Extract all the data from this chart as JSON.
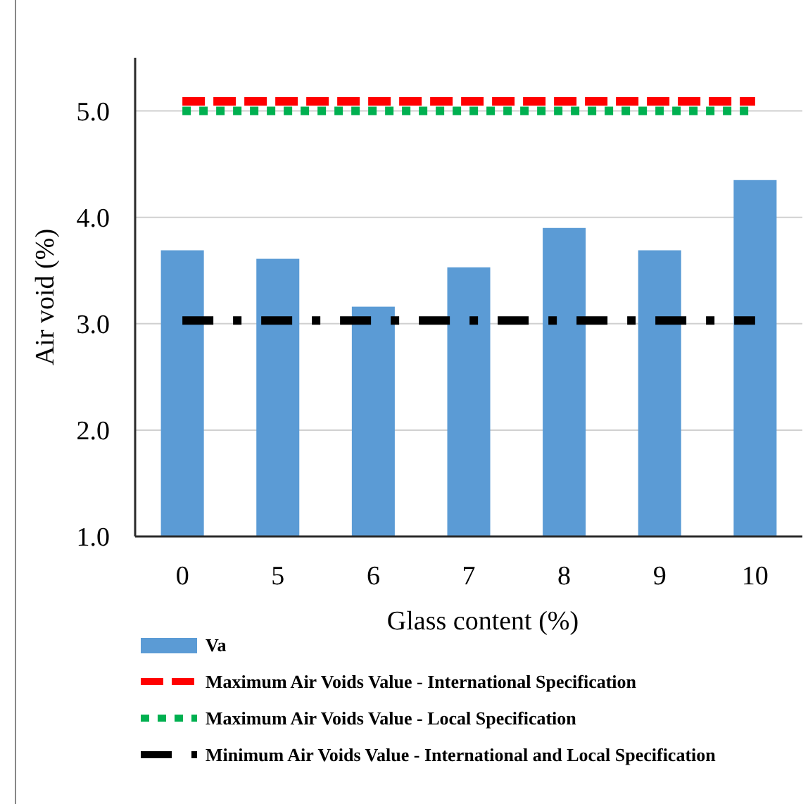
{
  "chart_data": {
    "type": "bar",
    "xlabel": "Glass content (%)",
    "ylabel": "Air void (%)",
    "categories": [
      "0",
      "5",
      "6",
      "7",
      "8",
      "9",
      "10"
    ],
    "series": [
      {
        "name": "Va",
        "color": "#5b9bd5",
        "values": [
          3.69,
          3.61,
          3.16,
          3.53,
          3.9,
          3.69,
          4.35
        ]
      },
      {
        "name": "Maximum Air Voids Value - International Specification",
        "type": "line",
        "line_style": "dashed",
        "color": "#ff0000",
        "values": [
          5.09,
          5.09,
          5.09,
          5.09,
          5.09,
          5.09,
          5.09
        ]
      },
      {
        "name": "Maximum Air Voids Value - Local Specification",
        "type": "line",
        "line_style": "dotted",
        "color": "#00b050",
        "values": [
          5.0,
          5.0,
          5.0,
          5.0,
          5.0,
          5.0,
          5.0
        ]
      },
      {
        "name": "Minimum Air Voids Value -  International and Local Specification",
        "type": "line",
        "line_style": "dashdot",
        "color": "#000000",
        "values": [
          3.03,
          3.03,
          3.03,
          3.03,
          3.03,
          3.03,
          3.03
        ]
      }
    ],
    "ylim": [
      1,
      5.5
    ],
    "yticks": [
      {
        "value": 1,
        "label": "1.0"
      },
      {
        "value": 2,
        "label": "2.0"
      },
      {
        "value": 3,
        "label": "3.0"
      },
      {
        "value": 4,
        "label": "4.0"
      },
      {
        "value": 5,
        "label": "5.0"
      }
    ],
    "grid": "y",
    "legend": "bottom"
  }
}
